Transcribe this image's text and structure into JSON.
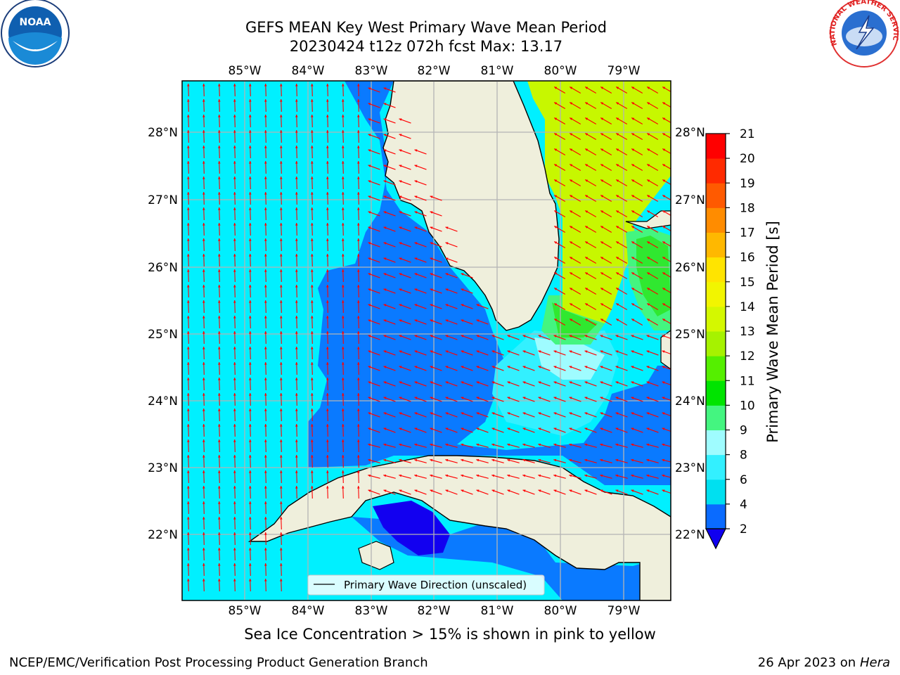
{
  "title": {
    "line1": "GEFS MEAN Key West Primary Wave Mean Period",
    "line2": "20230424 t12z 072h fcst   Max: 13.17"
  },
  "map": {
    "lon_ticks": [
      "85°W",
      "84°W",
      "83°W",
      "82°W",
      "81°W",
      "80°W",
      "79°W"
    ],
    "lat_ticks": [
      "28°N",
      "27°N",
      "26°N",
      "25°N",
      "24°N",
      "23°N",
      "22°N"
    ],
    "legend_label": "Primary Wave Direction (unscaled)"
  },
  "colorbar": {
    "title": "Primary Wave Mean Period [s]",
    "ticks": [
      "2",
      "4",
      "6",
      "8",
      "9",
      "10",
      "11",
      "12",
      "13",
      "14",
      "15",
      "16",
      "17",
      "18",
      "19",
      "20",
      "21"
    ],
    "colors": [
      "#0a6bff",
      "#00e0f0",
      "#33f0ff",
      "#9ffcff",
      "#44f580",
      "#00e400",
      "#55ef00",
      "#a6f200",
      "#d4f800",
      "#f2f500",
      "#ffe400",
      "#ffb800",
      "#ff8c00",
      "#ff5a00",
      "#ff2a00",
      "#ff0000"
    ],
    "extend_color": "#1000f0"
  },
  "logos": {
    "noaa": "NOAA",
    "nws": "NATIONAL WEATHER SERVICE"
  },
  "footer": {
    "note": "Sea Ice Concentration > 15% is shown in pink to yellow",
    "credit_left": "NCEP/EMC/Verification Post Processing Product Generation Branch",
    "credit_right_date": "26 Apr 2023 on ",
    "credit_right_host": "Hera"
  }
}
